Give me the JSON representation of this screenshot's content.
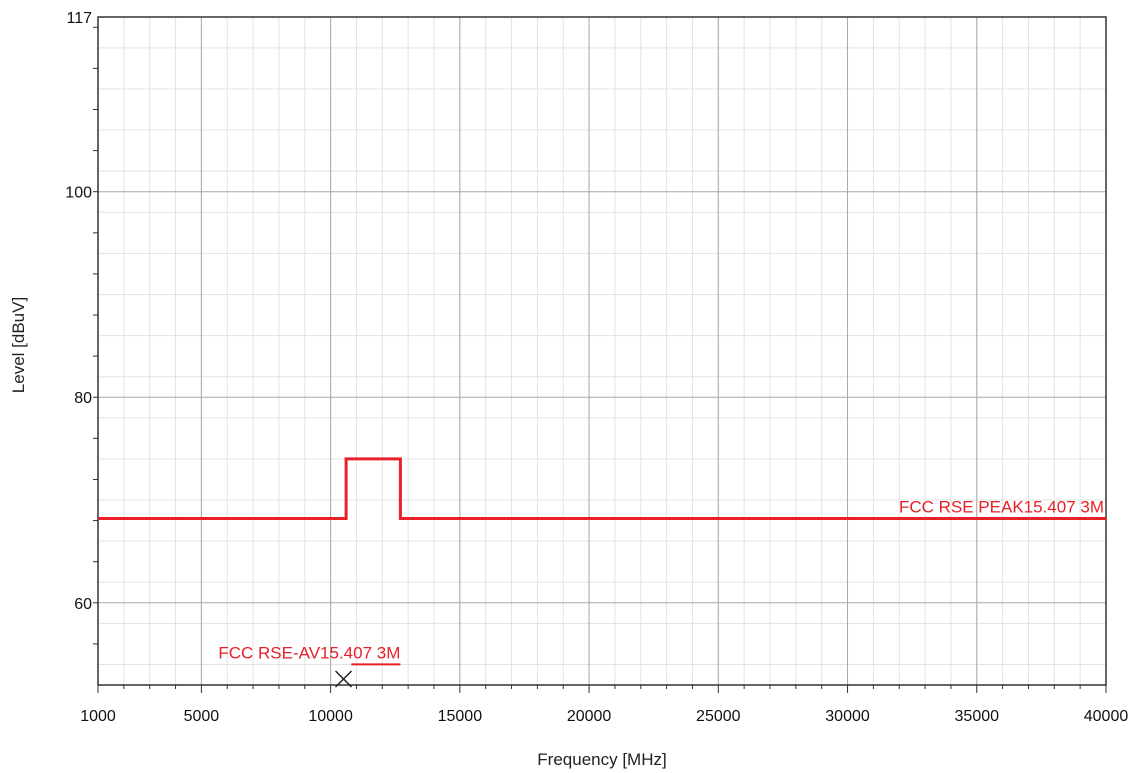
{
  "chart_data": {
    "type": "line",
    "xlabel": "Frequency [MHz]",
    "ylabel": "Level [dBuV]",
    "xlim": [
      1000,
      40000
    ],
    "ylim": [
      52,
      117
    ],
    "x_ticks": [
      1000,
      5000,
      10000,
      15000,
      20000,
      25000,
      30000,
      35000,
      40000
    ],
    "y_ticks": [
      117,
      100,
      80,
      60
    ],
    "grid": true,
    "limit_color": "#e8202a",
    "series": [
      {
        "name": "FCC RSE PEAK15.407 3M",
        "x": [
          1000,
          10600,
          10600,
          12700,
          12700,
          40000
        ],
        "y": [
          68.2,
          68.2,
          74,
          74,
          68.2,
          68.2
        ]
      },
      {
        "name": "FCC RSE-AV15.407 3M",
        "x": [
          10800,
          12700
        ],
        "y": [
          54,
          54
        ]
      }
    ],
    "marker": {
      "x": 10500,
      "y": 52,
      "symbol": "x"
    }
  }
}
